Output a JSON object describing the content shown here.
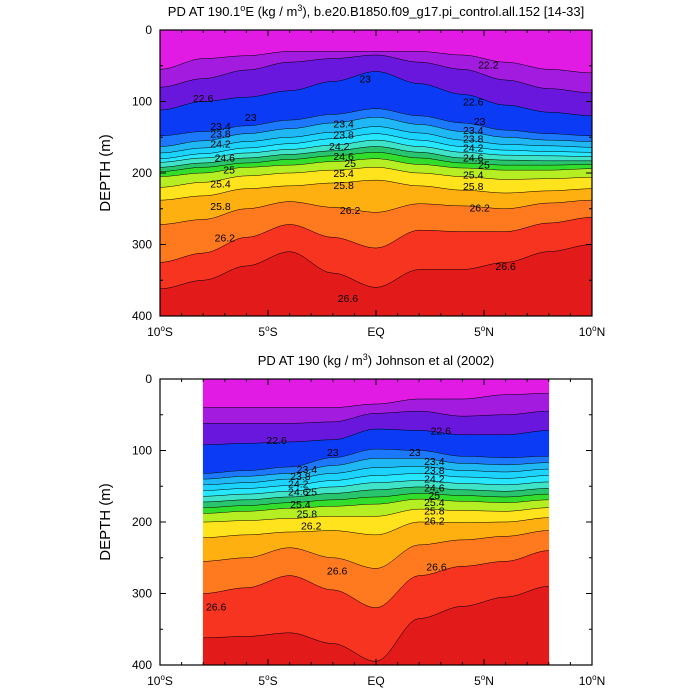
{
  "chart_data": [
    {
      "type": "contour",
      "title": "PD AT 190.1°E (kg / m³), b.e20.B1850.f09_g17.pi_control.all.152 [14-33]",
      "title_parts": [
        "PD AT 190.1",
        "o",
        "E (kg / m",
        "3",
        "), b.e20.B1850.f09_g17.pi_control.all.152 [14-33]"
      ],
      "ylabel": "DEPTH (m)",
      "ylim": [
        400,
        0
      ],
      "xlim": [
        -10,
        10
      ],
      "x_ticks": [
        {
          "value": -10,
          "label": "10",
          "deg": "o",
          "hemi": "S"
        },
        {
          "value": -5,
          "label": "5",
          "deg": "o",
          "hemi": "S"
        },
        {
          "value": 0,
          "label": "EQ",
          "deg": "",
          "hemi": ""
        },
        {
          "value": 5,
          "label": "5",
          "deg": "o",
          "hemi": "N"
        },
        {
          "value": 10,
          "label": "10",
          "deg": "o",
          "hemi": "N"
        }
      ],
      "y_ticks": [
        "0",
        "100",
        "200",
        "300",
        "400"
      ],
      "data_extent": [
        -10,
        10
      ],
      "contour_labels": [
        {
          "text": "23",
          "x": -0.5,
          "y": 68
        },
        {
          "text": "22.6",
          "x": -8.0,
          "y": 95
        },
        {
          "text": "23",
          "x": -5.8,
          "y": 122
        },
        {
          "text": "22.6",
          "x": 4.5,
          "y": 100
        },
        {
          "text": "22.2",
          "x": 5.2,
          "y": 48
        },
        {
          "text": "23",
          "x": 4.8,
          "y": 127
        },
        {
          "text": "23.4",
          "x": -7.2,
          "y": 134
        },
        {
          "text": "23.8",
          "x": -7.2,
          "y": 145
        },
        {
          "text": "24.2",
          "x": -7.2,
          "y": 159
        },
        {
          "text": "24.6",
          "x": -7.0,
          "y": 178
        },
        {
          "text": "25",
          "x": -6.8,
          "y": 195
        },
        {
          "text": "23.4",
          "x": -1.5,
          "y": 131
        },
        {
          "text": "23.8",
          "x": -1.5,
          "y": 146
        },
        {
          "text": "24.2",
          "x": -1.7,
          "y": 162
        },
        {
          "text": "24.6",
          "x": -1.5,
          "y": 176
        },
        {
          "text": "25",
          "x": -1.2,
          "y": 186
        },
        {
          "text": "23.4",
          "x": 4.5,
          "y": 140
        },
        {
          "text": "23.8",
          "x": 4.5,
          "y": 152
        },
        {
          "text": "24.2",
          "x": 4.5,
          "y": 164
        },
        {
          "text": "24.6",
          "x": 4.5,
          "y": 178
        },
        {
          "text": "25",
          "x": 5.0,
          "y": 188
        },
        {
          "text": "25.4",
          "x": -7.2,
          "y": 215
        },
        {
          "text": "25.4",
          "x": -1.5,
          "y": 200
        },
        {
          "text": "25.4",
          "x": 4.5,
          "y": 202
        },
        {
          "text": "25.8",
          "x": -7.2,
          "y": 246
        },
        {
          "text": "25.8",
          "x": -1.5,
          "y": 217
        },
        {
          "text": "25.8",
          "x": 4.5,
          "y": 218
        },
        {
          "text": "26.2",
          "x": -7.0,
          "y": 290
        },
        {
          "text": "26.2",
          "x": -1.2,
          "y": 252
        },
        {
          "text": "26.2",
          "x": 4.8,
          "y": 248
        },
        {
          "text": "26.6",
          "x": -1.3,
          "y": 375
        },
        {
          "text": "26.6",
          "x": 6.0,
          "y": 330
        }
      ],
      "depth_profiles": [
        {
          "x": -10,
          "d": [
            55,
            80,
            112,
            148,
            163,
            172,
            180,
            185,
            192,
            198,
            205,
            220,
            238,
            272,
            325,
            362
          ]
        },
        {
          "x": -8,
          "d": [
            40,
            68,
            100,
            142,
            155,
            165,
            173,
            179,
            186,
            192,
            200,
            213,
            232,
            265,
            312,
            350
          ]
        },
        {
          "x": -6,
          "d": [
            36,
            56,
            94,
            134,
            145,
            156,
            165,
            172,
            179,
            186,
            192,
            204,
            222,
            250,
            290,
            330
          ]
        },
        {
          "x": -4,
          "d": [
            30,
            45,
            85,
            126,
            138,
            150,
            159,
            167,
            174,
            181,
            189,
            200,
            218,
            240,
            272,
            310
          ]
        },
        {
          "x": -2,
          "d": [
            30,
            40,
            72,
            118,
            130,
            143,
            152,
            161,
            169,
            176,
            184,
            196,
            214,
            248,
            290,
            340
          ]
        },
        {
          "x": 0,
          "d": [
            30,
            35,
            58,
            110,
            122,
            135,
            145,
            154,
            163,
            171,
            180,
            192,
            210,
            255,
            305,
            360
          ]
        },
        {
          "x": 2,
          "d": [
            30,
            45,
            75,
            120,
            132,
            144,
            154,
            163,
            171,
            179,
            188,
            200,
            218,
            243,
            280,
            335
          ]
        },
        {
          "x": 4,
          "d": [
            35,
            55,
            90,
            130,
            142,
            154,
            163,
            171,
            179,
            186,
            193,
            205,
            224,
            246,
            282,
            335
          ]
        },
        {
          "x": 6,
          "d": [
            45,
            70,
            105,
            140,
            150,
            160,
            168,
            175,
            182,
            189,
            196,
            209,
            228,
            250,
            282,
            325
          ]
        },
        {
          "x": 8,
          "d": [
            55,
            82,
            115,
            145,
            154,
            162,
            170,
            176,
            183,
            189,
            196,
            208,
            225,
            242,
            270,
            310
          ]
        },
        {
          "x": 10,
          "d": [
            60,
            88,
            120,
            148,
            156,
            164,
            171,
            177,
            183,
            188,
            194,
            206,
            222,
            238,
            262,
            300
          ]
        }
      ]
    },
    {
      "type": "contour",
      "title": "PD AT 190 (kg / m³) Johnson et al (2002)",
      "title_parts": [
        "PD AT 190 (kg / m",
        "3",
        ") Johnson et al (2002)"
      ],
      "ylabel": "DEPTH (m)",
      "ylim": [
        400,
        0
      ],
      "xlim": [
        -10,
        10
      ],
      "x_ticks": [
        {
          "value": -10,
          "label": "10",
          "deg": "o",
          "hemi": "S"
        },
        {
          "value": -5,
          "label": "5",
          "deg": "o",
          "hemi": "S"
        },
        {
          "value": 0,
          "label": "EQ",
          "deg": "",
          "hemi": ""
        },
        {
          "value": 5,
          "label": "5",
          "deg": "o",
          "hemi": "N"
        },
        {
          "value": 10,
          "label": "10",
          "deg": "o",
          "hemi": "N"
        }
      ],
      "y_ticks": [
        "0",
        "100",
        "200",
        "300",
        "400"
      ],
      "data_extent": [
        -8,
        8
      ],
      "contour_labels": [
        {
          "text": "22.6",
          "x": -4.6,
          "y": 85
        },
        {
          "text": "23",
          "x": -2.0,
          "y": 102
        },
        {
          "text": "22.6",
          "x": 3.0,
          "y": 72
        },
        {
          "text": "23",
          "x": 1.8,
          "y": 102
        },
        {
          "text": "23.4",
          "x": -3.2,
          "y": 126
        },
        {
          "text": "23.8",
          "x": -3.5,
          "y": 136
        },
        {
          "text": "24.2",
          "x": -3.6,
          "y": 146
        },
        {
          "text": "24.6",
          "x": -3.6,
          "y": 157
        },
        {
          "text": "25",
          "x": -3.0,
          "y": 157
        },
        {
          "text": "25.4",
          "x": -3.5,
          "y": 175
        },
        {
          "text": "25.8",
          "x": -3.2,
          "y": 188
        },
        {
          "text": "26.2",
          "x": -3.0,
          "y": 205
        },
        {
          "text": "23.4",
          "x": 2.7,
          "y": 115
        },
        {
          "text": "23.8",
          "x": 2.7,
          "y": 127
        },
        {
          "text": "24.2",
          "x": 2.7,
          "y": 139
        },
        {
          "text": "24.6",
          "x": 2.7,
          "y": 152
        },
        {
          "text": "25",
          "x": 2.7,
          "y": 162
        },
        {
          "text": "25.4",
          "x": 2.7,
          "y": 172
        },
        {
          "text": "25.8",
          "x": 2.7,
          "y": 184
        },
        {
          "text": "26.2",
          "x": 2.7,
          "y": 198
        },
        {
          "text": "26.6",
          "x": -1.8,
          "y": 268
        },
        {
          "text": "26.6",
          "x": 2.8,
          "y": 262
        },
        {
          "text": "26.6",
          "x": -7.4,
          "y": 318
        }
      ],
      "depth_profiles": [
        {
          "x": -8,
          "d": [
            40,
            62,
            92,
            132,
            140,
            148,
            156,
            164,
            172,
            180,
            188,
            200,
            222,
            255,
            300,
            362
          ]
        },
        {
          "x": -6,
          "d": [
            40,
            62,
            90,
            128,
            136,
            145,
            153,
            161,
            169,
            177,
            185,
            198,
            218,
            250,
            292,
            360
          ]
        },
        {
          "x": -4,
          "d": [
            40,
            62,
            88,
            123,
            132,
            140,
            149,
            157,
            165,
            173,
            181,
            195,
            214,
            236,
            275,
            355
          ]
        },
        {
          "x": -2,
          "d": [
            40,
            60,
            85,
            110,
            121,
            132,
            142,
            151,
            160,
            169,
            178,
            192,
            212,
            250,
            295,
            370
          ]
        },
        {
          "x": 0,
          "d": [
            35,
            48,
            70,
            98,
            111,
            124,
            135,
            145,
            155,
            165,
            175,
            192,
            218,
            265,
            320,
            395
          ]
        },
        {
          "x": 2,
          "d": [
            28,
            45,
            72,
            100,
            111,
            122,
            132,
            142,
            151,
            160,
            168,
            182,
            200,
            232,
            275,
            335
          ]
        },
        {
          "x": 4,
          "d": [
            28,
            52,
            78,
            108,
            118,
            128,
            137,
            146,
            155,
            163,
            171,
            184,
            201,
            225,
            262,
            318
          ]
        },
        {
          "x": 6,
          "d": [
            22,
            50,
            78,
            110,
            120,
            130,
            139,
            148,
            157,
            165,
            173,
            185,
            200,
            220,
            255,
            305
          ]
        },
        {
          "x": 8,
          "d": [
            20,
            45,
            72,
            108,
            117,
            126,
            135,
            144,
            153,
            161,
            169,
            180,
            194,
            212,
            240,
            290
          ]
        }
      ]
    }
  ],
  "fill_colors": [
    "#e21be4",
    "#a31bde",
    "#6a17dd",
    "#0b3bf5",
    "#1c78ff",
    "#1fb8f5",
    "#1cd3ff",
    "#27e6ff",
    "#3ee3c8",
    "#29c46e",
    "#33dd2b",
    "#b6ee24",
    "#ffe31c",
    "#ffb011",
    "#ff7a1f",
    "#f7341f",
    "#e21a1a",
    "#cc0000"
  ]
}
